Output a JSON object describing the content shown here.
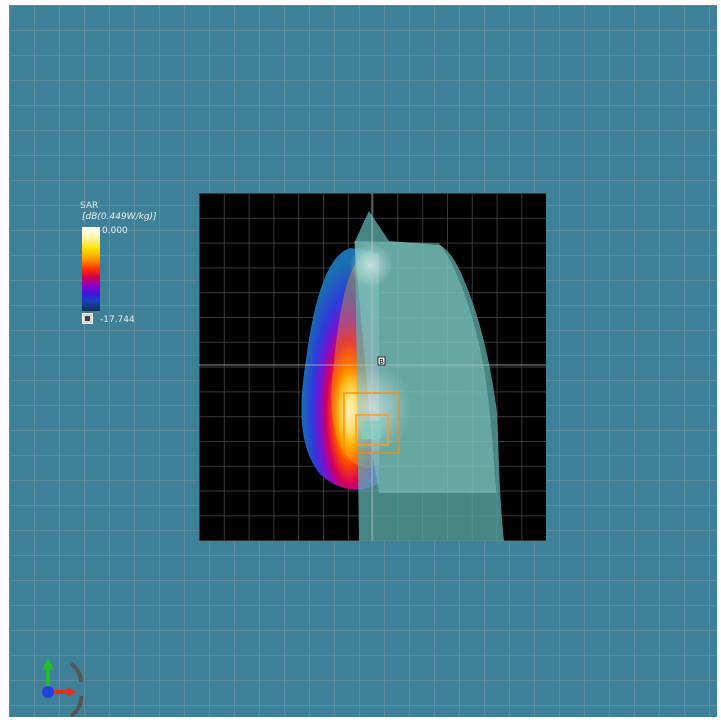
{
  "legend": {
    "quantity": "SAR",
    "unit": "[dB(0.449W/kg)]",
    "max_label": "0.000",
    "min_label": "-17.744"
  },
  "scan": {
    "center_marker": "B"
  },
  "icons": {
    "axis_triad": "xyz-axis-triad-icon",
    "colormap": "colormap-icon"
  },
  "colors": {
    "background": "#3f8099",
    "scan_background": "#000000",
    "phantom": "#6fb7b2",
    "x_axis": "#e03020",
    "y_axis": "#20c030",
    "z_axis": "#2040e0"
  }
}
